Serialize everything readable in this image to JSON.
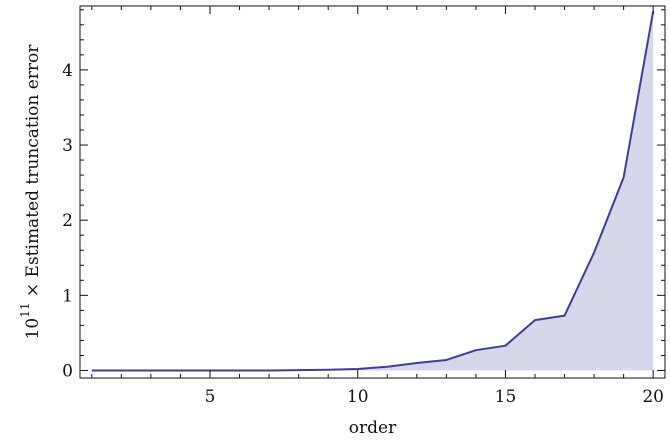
{
  "chart_data": {
    "type": "area",
    "title": "",
    "xlabel": "order",
    "ylabel": {
      "prefix": "10",
      "superscript": "11",
      "suffix": " × Estimated truncation error"
    },
    "xlim": [
      0.6,
      20.4
    ],
    "ylim": [
      -0.1,
      4.85
    ],
    "x_ticks": [
      5,
      10,
      15,
      20
    ],
    "x_tick_labels": [
      "5",
      "10",
      "15",
      "20"
    ],
    "y_ticks": [
      0,
      1,
      2,
      3,
      4
    ],
    "y_tick_labels": [
      "0",
      "1",
      "2",
      "3",
      "4"
    ],
    "x_minor_step": 1,
    "y_minor_step": 0.2,
    "grid": false,
    "legend": "none",
    "colors": {
      "line": "#3f3d99",
      "fill": "#d7d7ec"
    },
    "x": [
      1,
      2,
      3,
      4,
      5,
      6,
      7,
      8,
      9,
      10,
      11,
      12,
      13,
      14,
      15,
      16,
      17,
      18,
      19,
      20
    ],
    "y": [
      0.0,
      0.0,
      0.0,
      0.0,
      0.0,
      0.0,
      0.0,
      0.005,
      0.01,
      0.02,
      0.05,
      0.1,
      0.14,
      0.27,
      0.33,
      0.67,
      0.73,
      1.57,
      2.57,
      4.78
    ]
  }
}
